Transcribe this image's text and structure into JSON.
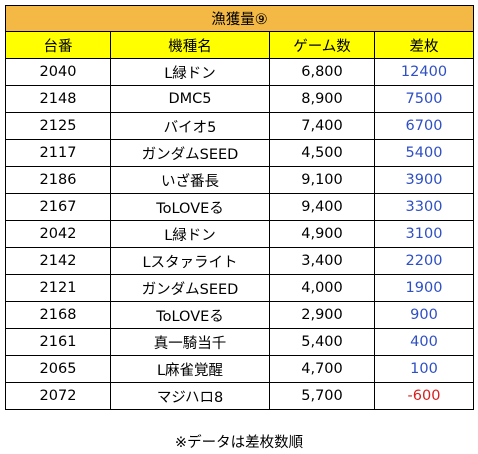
{
  "title": "漁獲量⑨",
  "headers": {
    "machine_no": "台番",
    "machine_name": "機種名",
    "games": "ゲーム数",
    "diff": "差枚"
  },
  "rows": [
    {
      "no": "2040",
      "name": "L緑ドン",
      "games": "6,800",
      "diff": "12400"
    },
    {
      "no": "2148",
      "name": "DMC5",
      "games": "8,900",
      "diff": "7500"
    },
    {
      "no": "2125",
      "name": "バイオ5",
      "games": "7,400",
      "diff": "6700"
    },
    {
      "no": "2117",
      "name": "ガンダムSEED",
      "games": "4,500",
      "diff": "5400"
    },
    {
      "no": "2186",
      "name": "いざ番長",
      "games": "9,100",
      "diff": "3900"
    },
    {
      "no": "2167",
      "name": "ToLOVEる",
      "games": "9,400",
      "diff": "3300"
    },
    {
      "no": "2042",
      "name": "L緑ドン",
      "games": "4,900",
      "diff": "3100"
    },
    {
      "no": "2142",
      "name": "Lスタァライト",
      "games": "3,400",
      "diff": "2200"
    },
    {
      "no": "2121",
      "name": "ガンダムSEED",
      "games": "4,000",
      "diff": "1900"
    },
    {
      "no": "2168",
      "name": "ToLOVEる",
      "games": "2,900",
      "diff": "900"
    },
    {
      "no": "2161",
      "name": "真一騎当千",
      "games": "5,400",
      "diff": "400"
    },
    {
      "no": "2065",
      "name": "L麻雀覚醒",
      "games": "4,700",
      "diff": "100"
    },
    {
      "no": "2072",
      "name": "マジハロ8",
      "games": "5,700",
      "diff": "-600"
    }
  ],
  "note": "※データは差枚数順",
  "colors": {
    "title_bg": "#f4b944",
    "header_bg": "#ffff00",
    "positive": "#2f4fc4",
    "negative": "#d62020"
  }
}
